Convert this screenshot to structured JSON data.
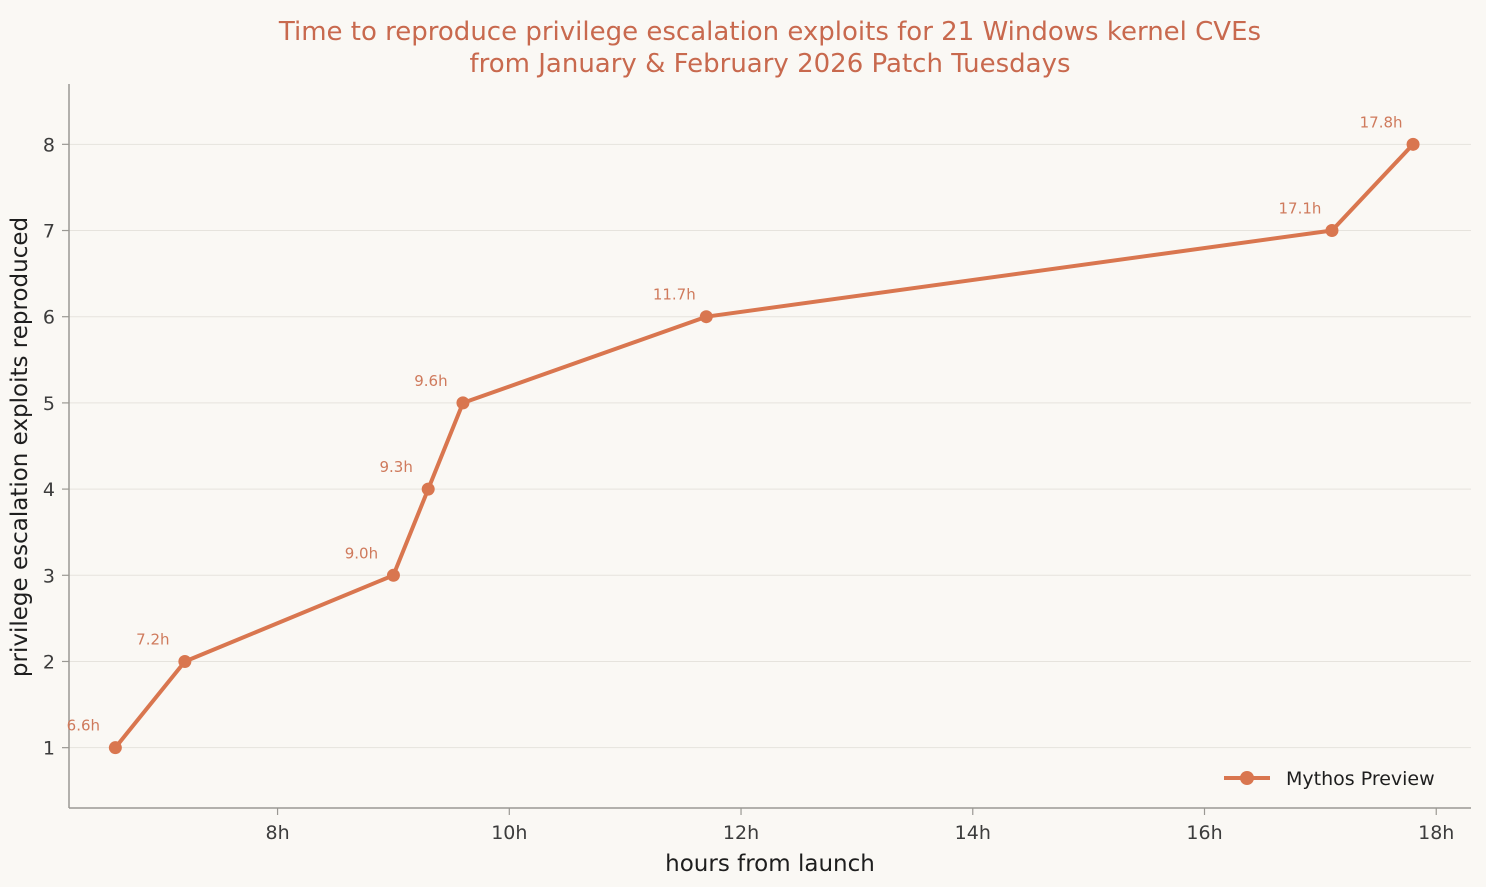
{
  "colors": {
    "background": "#faf8f4",
    "series": "#d9764f",
    "title": "#c8694e",
    "data_label": "#cf7a5c",
    "grid": "#e6e3dd",
    "axis": "#9a9893"
  },
  "chart_data": {
    "type": "line",
    "title": "Time to reproduce privilege escalation exploits for 21 Windows kernel CVEs",
    "subtitle": "from January & February 2026 Patch Tuesdays",
    "xlabel": "hours from launch",
    "ylabel": "privilege escalation exploits reproduced",
    "xlim": [
      6.2,
      18.3
    ],
    "ylim": [
      0.3,
      8.7
    ],
    "xticks": [
      8,
      10,
      12,
      14,
      16,
      18
    ],
    "xtick_labels": [
      "8h",
      "10h",
      "12h",
      "14h",
      "16h",
      "18h"
    ],
    "yticks": [
      1,
      2,
      3,
      4,
      5,
      6,
      7,
      8
    ],
    "ytick_labels": [
      "1",
      "2",
      "3",
      "4",
      "5",
      "6",
      "7",
      "8"
    ],
    "grid": "horizontal",
    "legend_position": "bottom-right",
    "series": [
      {
        "name": "Mythos Preview",
        "x": [
          6.6,
          7.2,
          9.0,
          9.3,
          9.6,
          11.7,
          17.1,
          17.8
        ],
        "y": [
          1,
          2,
          3,
          4,
          5,
          6,
          7,
          8
        ],
        "point_labels": [
          "6.6h",
          "7.2h",
          "9.0h",
          "9.3h",
          "9.6h",
          "11.7h",
          "17.1h",
          "17.8h"
        ]
      }
    ]
  }
}
